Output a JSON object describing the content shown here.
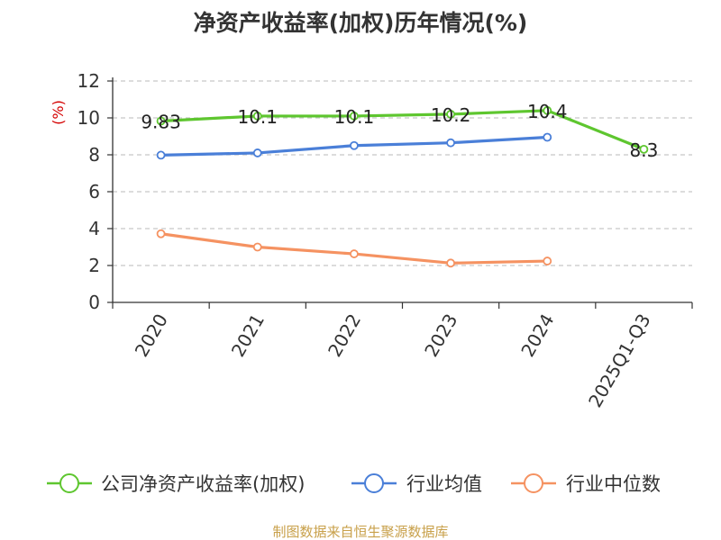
{
  "chart_data": {
    "type": "line",
    "title": "净资产收益率(加权)历年情况(%)",
    "ylabel": "(%)",
    "ylim": [
      0,
      12
    ],
    "yticks": [
      0,
      2,
      4,
      6,
      8,
      10,
      12
    ],
    "grid": true,
    "legend_position": "bottom",
    "categories": [
      "2020",
      "2021",
      "2022",
      "2023",
      "2024",
      "2025Q1-Q3"
    ],
    "series": [
      {
        "name": "公司净资产收益率(加权)",
        "color": "#5ec62f",
        "values": [
          9.83,
          10.1,
          10.1,
          10.2,
          10.4,
          8.3
        ],
        "labels": [
          "9.83",
          "10.1",
          "10.1",
          "10.2",
          "10.4",
          "8.3"
        ]
      },
      {
        "name": "行业均值",
        "color": "#4a7fd8",
        "values": [
          7.98,
          8.1,
          8.5,
          8.65,
          8.95,
          null
        ],
        "labels": []
      },
      {
        "name": "行业中位数",
        "color": "#f59261",
        "values": [
          3.72,
          3.0,
          2.63,
          2.13,
          2.24,
          null
        ],
        "labels": []
      }
    ]
  },
  "ylabel_color": "#d40000",
  "footer": {
    "text": "制图数据来自恒生聚源数据库",
    "color": "#c8a04a"
  }
}
